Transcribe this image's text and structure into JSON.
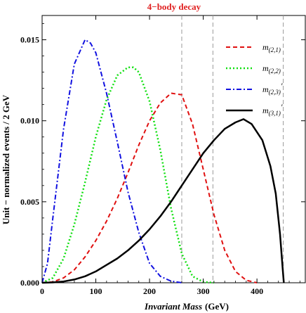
{
  "chart_data": {
    "type": "line",
    "title": "4−body decay",
    "title_color": "#e02020",
    "xlabel_italic": "Invariant Mass",
    "xlabel_units": "(GeV)",
    "ylabel": "Unit − normalized events / 2 GeV",
    "xlim": [
      0,
      490
    ],
    "ylim": [
      0,
      0.0165
    ],
    "x_ticks": [
      0,
      100,
      200,
      300,
      400
    ],
    "x_tick_labels": [
      "0",
      "100",
      "200",
      "300",
      "400"
    ],
    "y_ticks": [
      0,
      0.005,
      0.01,
      0.015
    ],
    "y_tick_labels": [
      "0.000",
      "0.005",
      "0.010",
      "0.015"
    ],
    "grid": false,
    "legend_position": "top-right",
    "vertical_lines": [
      260,
      318,
      449
    ],
    "series": [
      {
        "legend_base": "m",
        "legend_sub": "(2,1)",
        "legend_prime": "",
        "color": "#e01010",
        "dash": "6,4",
        "width": 2,
        "x": [
          0,
          20,
          40,
          60,
          80,
          100,
          120,
          140,
          160,
          180,
          200,
          220,
          240,
          260,
          280,
          300,
          320,
          340,
          360,
          380,
          400
        ],
        "y": [
          0.0,
          5e-05,
          0.0003,
          0.0008,
          0.0016,
          0.0026,
          0.0038,
          0.0052,
          0.0068,
          0.0085,
          0.01,
          0.0111,
          0.0117,
          0.0116,
          0.0098,
          0.007,
          0.0042,
          0.002,
          0.0007,
          0.00015,
          0.0
        ]
      },
      {
        "legend_base": "m",
        "legend_sub": "(2,2)",
        "legend_prime": "",
        "color": "#10e010",
        "dash": "2,3",
        "width": 2.5,
        "x": [
          0,
          20,
          40,
          60,
          80,
          100,
          120,
          140,
          160,
          170,
          180,
          200,
          220,
          240,
          260,
          280,
          300,
          320
        ],
        "y": [
          0.0,
          0.0003,
          0.0015,
          0.0036,
          0.0062,
          0.009,
          0.0113,
          0.0128,
          0.0133,
          0.0133,
          0.013,
          0.0112,
          0.0082,
          0.0046,
          0.0018,
          0.0004,
          5e-05,
          0.0
        ]
      },
      {
        "legend_base": "m",
        "legend_sub": "(2,3)",
        "legend_prime": "′",
        "color": "#1010e0",
        "dash": "7,3,2,3",
        "width": 2,
        "x": [
          0,
          10,
          20,
          40,
          60,
          80,
          90,
          100,
          120,
          140,
          160,
          180,
          200,
          220,
          240,
          260
        ],
        "y": [
          0.0,
          0.0012,
          0.004,
          0.0095,
          0.0135,
          0.015,
          0.0148,
          0.0142,
          0.0117,
          0.0087,
          0.0056,
          0.0031,
          0.0012,
          0.0004,
          0.0001,
          0.0
        ]
      },
      {
        "legend_base": "m",
        "legend_sub": "(3,1)",
        "legend_prime": "′",
        "color": "#000000",
        "dash": "",
        "width": 2.5,
        "x": [
          0,
          20,
          40,
          60,
          80,
          100,
          120,
          140,
          160,
          180,
          200,
          220,
          240,
          260,
          280,
          300,
          320,
          340,
          360,
          375,
          390,
          410,
          425,
          435,
          443,
          448,
          450
        ],
        "y": [
          0.0,
          2e-05,
          8e-05,
          0.0002,
          0.0004,
          0.0007,
          0.0011,
          0.0015,
          0.002,
          0.0026,
          0.0033,
          0.0041,
          0.005,
          0.006,
          0.007,
          0.008,
          0.0088,
          0.0095,
          0.0099,
          0.0101,
          0.0098,
          0.0088,
          0.0072,
          0.0055,
          0.003,
          0.0008,
          0.0
        ]
      }
    ]
  }
}
